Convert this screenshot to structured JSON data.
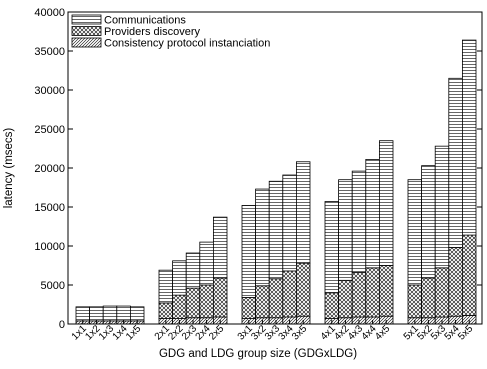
{
  "chart_data": {
    "type": "bar",
    "stacked": true,
    "xlabel": "GDG and LDG group size (GDGxLDG)",
    "ylabel": "latency (msecs)",
    "ylim": [
      0,
      40000
    ],
    "yticks": [
      0,
      5000,
      10000,
      15000,
      20000,
      25000,
      30000,
      35000,
      40000
    ],
    "legend_position": "top-left",
    "categories": [
      "1x1",
      "1x2",
      "1x3",
      "1x4",
      "1x5",
      "2x1",
      "2x2",
      "2x3",
      "2x4",
      "2x5",
      "3x1",
      "3x2",
      "3x3",
      "3x4",
      "3x5",
      "4x1",
      "4x2",
      "4x3",
      "4x4",
      "4x5",
      "5x1",
      "5x2",
      "5x3",
      "5x4",
      "5x5"
    ],
    "series": [
      {
        "name": "Consistency protocol instanciation",
        "pattern": "diagonal-dense",
        "values": [
          400,
          400,
          400,
          400,
          400,
          700,
          700,
          800,
          800,
          900,
          700,
          800,
          800,
          900,
          1000,
          700,
          800,
          900,
          900,
          1000,
          800,
          800,
          900,
          1000,
          1100
        ]
      },
      {
        "name": "Providers discovery",
        "pattern": "crosshatch",
        "values": [
          0,
          0,
          0,
          0,
          0,
          2000,
          3000,
          3800,
          4200,
          5000,
          2700,
          4100,
          5000,
          5900,
          6800,
          3300,
          4800,
          5700,
          6300,
          6500,
          4200,
          5100,
          6300,
          8800,
          10300
        ]
      },
      {
        "name": "Communications",
        "pattern": "horizontal-lines",
        "values": [
          1800,
          1800,
          1900,
          1900,
          1800,
          4200,
          4400,
          4500,
          5500,
          7800,
          11800,
          12400,
          12500,
          12300,
          13000,
          11700,
          12900,
          13000,
          13900,
          16000,
          13500,
          14400,
          15600,
          21700,
          25000
        ]
      }
    ]
  }
}
